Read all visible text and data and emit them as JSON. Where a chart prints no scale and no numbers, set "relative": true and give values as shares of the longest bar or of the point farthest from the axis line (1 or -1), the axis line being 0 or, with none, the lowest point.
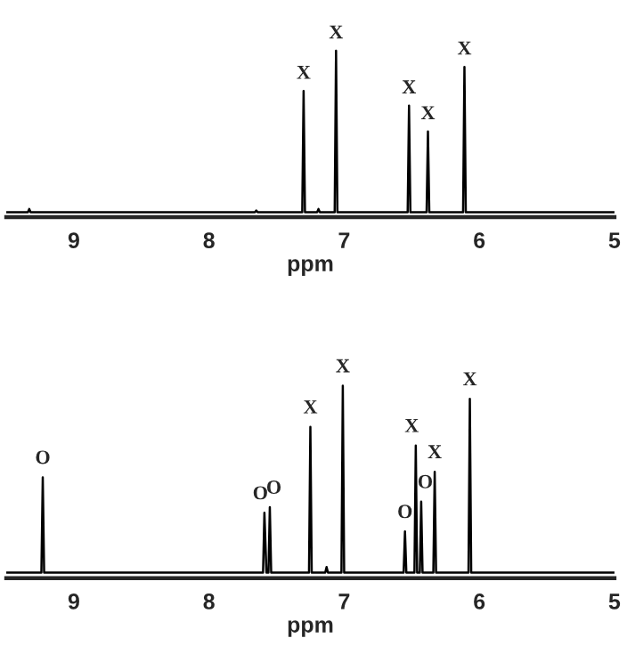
{
  "chart_data": [
    {
      "type": "line",
      "relative": true,
      "xlabel": "ppm",
      "xlim": [
        9.5,
        5
      ],
      "xticks": [
        9,
        8,
        7,
        6,
        5
      ],
      "tick_labels": "x",
      "series": [
        {
          "color": "#000000",
          "x": [
            9.5,
            9.34,
            9.33,
            9.32,
            7.66,
            7.65,
            7.64,
            7.31,
            7.3,
            7.29,
            7.2,
            7.19,
            7.18,
            7.07,
            7.06,
            7.05,
            6.53,
            6.52,
            6.51,
            6.39,
            6.38,
            6.37,
            6.12,
            6.11,
            6.1,
            5.0
          ],
          "values": [
            0,
            0,
            0.02,
            0,
            0,
            0.01,
            0,
            0,
            0.75,
            0,
            0,
            0.02,
            0,
            0,
            1,
            0,
            0,
            0.66,
            0,
            0,
            0.5,
            0,
            0,
            0.9,
            0,
            0
          ]
        }
      ],
      "annotations": [
        {
          "text": "X",
          "x": 7.3,
          "y": 0.75
        },
        {
          "text": "X",
          "x": 7.06,
          "y": 1
        },
        {
          "text": "X",
          "x": 6.52,
          "y": 0.66
        },
        {
          "text": "X",
          "x": 6.38,
          "y": 0.5
        },
        {
          "text": "X",
          "x": 6.11,
          "y": 0.9
        }
      ]
    },
    {
      "type": "line",
      "relative": true,
      "xlabel": "ppm",
      "xlim": [
        9.5,
        5
      ],
      "xticks": [
        9,
        8,
        7,
        6,
        5
      ],
      "tick_labels": "x",
      "series": [
        {
          "color": "#000000",
          "x": [
            9.5,
            9.24,
            9.23,
            9.22,
            7.6,
            7.59,
            7.575,
            7.56,
            7.55,
            7.54,
            7.26,
            7.25,
            7.24,
            7.14,
            7.13,
            7.12,
            7.02,
            7.01,
            7.0,
            6.56,
            6.55,
            6.54,
            6.48,
            6.47,
            6.46,
            6.44,
            6.43,
            6.42,
            6.34,
            6.33,
            6.32,
            6.08,
            6.07,
            6.06,
            5.0
          ],
          "values": [
            0,
            0,
            0.51,
            0,
            0,
            0.32,
            0,
            0,
            0.35,
            0,
            0,
            0.78,
            0,
            0,
            0.03,
            0,
            0,
            1,
            0,
            0,
            0.22,
            0,
            0,
            0.68,
            0,
            0,
            0.38,
            0,
            0,
            0.54,
            0,
            0,
            0.93,
            0,
            0
          ]
        }
      ],
      "annotations": [
        {
          "text": "O",
          "x": 9.23,
          "y": 0.51
        },
        {
          "text": "O",
          "x": 7.59,
          "y": 0.32
        },
        {
          "text": "O",
          "x": 7.55,
          "y": 0.35
        },
        {
          "text": "X",
          "x": 7.25,
          "y": 0.78
        },
        {
          "text": "X",
          "x": 7.01,
          "y": 1
        },
        {
          "text": "O",
          "x": 6.55,
          "y": 0.22
        },
        {
          "text": "X",
          "x": 6.47,
          "y": 0.68
        },
        {
          "text": "O",
          "x": 6.43,
          "y": 0.38
        },
        {
          "text": "X",
          "x": 6.33,
          "y": 0.54
        },
        {
          "text": "X",
          "x": 6.07,
          "y": 0.93
        }
      ]
    }
  ]
}
